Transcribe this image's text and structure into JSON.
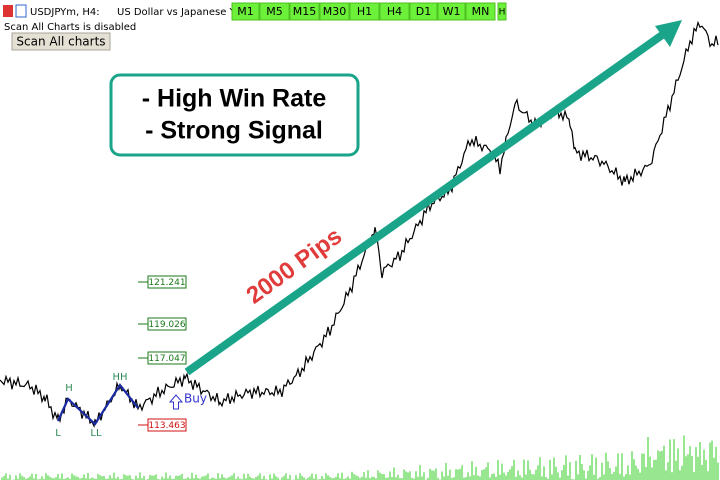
{
  "toolbar": {
    "symbol": "USDJPYm, H4:",
    "description": "US Dollar vs Japanese Yen",
    "timeframes": [
      "M1",
      "M5",
      "M15",
      "M30",
      "H1",
      "H4",
      "D1",
      "W1",
      "MN",
      "H"
    ]
  },
  "status": "Scan All Charts is disabled",
  "button": "Scan All charts",
  "callout": {
    "lines": [
      "- High Win Rate",
      "- Strong Signal"
    ]
  },
  "arrow_label": "2000 Pips",
  "pattern_labels": [
    "H",
    "HH",
    "L",
    "LL"
  ],
  "signal": "Buy",
  "price_levels": [
    "121.241",
    "119.026",
    "117.047",
    "113.463"
  ]
}
